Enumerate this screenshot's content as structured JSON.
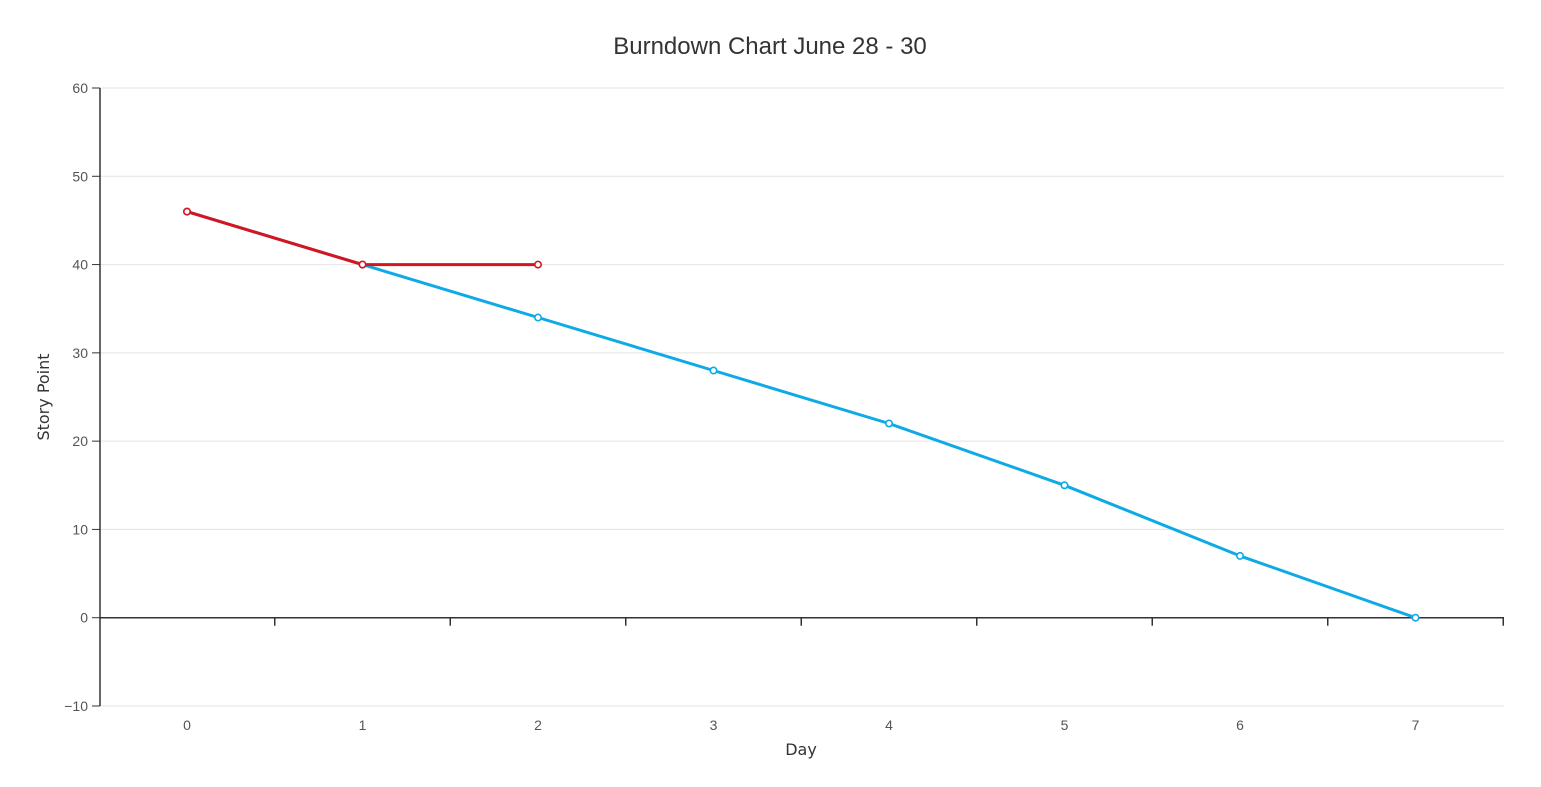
{
  "chart_data": {
    "type": "line",
    "title": "Burndown Chart June 28 - 30",
    "xlabel": "Day",
    "ylabel": "Story Point",
    "x_ticks": [
      "0",
      "1",
      "2",
      "3",
      "4",
      "5",
      "6",
      "7"
    ],
    "y_ticks": [
      "60",
      "50",
      "40",
      "30",
      "20",
      "10",
      "0",
      "−10"
    ],
    "xlim": [
      -0.5,
      7.5
    ],
    "ylim": [
      -10,
      60
    ],
    "grid": true,
    "legend": "none",
    "series": [
      {
        "color": "#0eaae6",
        "x": [
          0,
          1,
          2,
          3,
          4,
          5,
          6,
          7
        ],
        "y": [
          46,
          40,
          34,
          28,
          22,
          15,
          7,
          0
        ]
      },
      {
        "color": "#d7141e",
        "x": [
          0,
          1,
          2
        ],
        "y": [
          46,
          40,
          40
        ]
      }
    ]
  }
}
